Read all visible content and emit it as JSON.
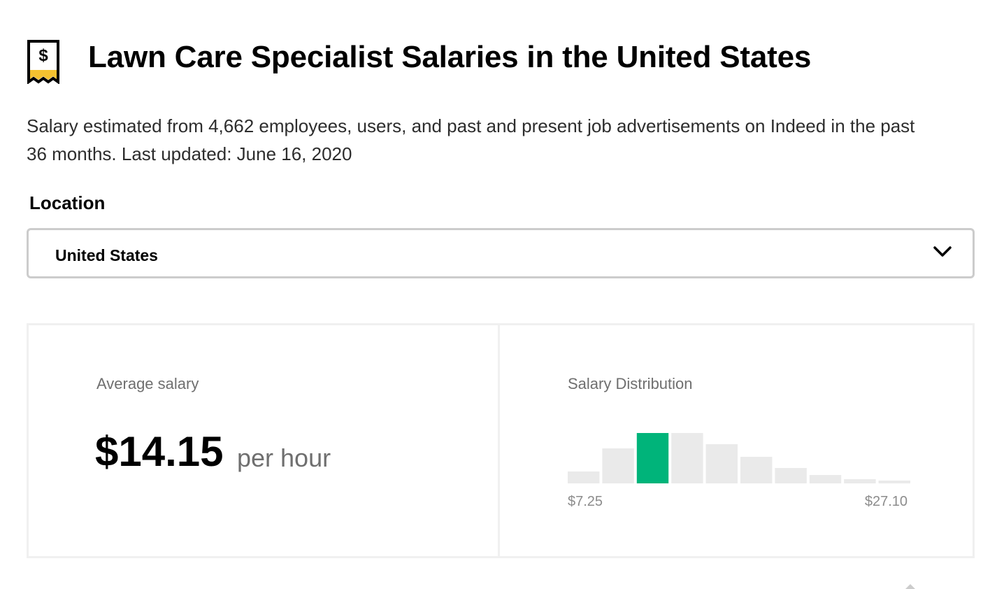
{
  "header": {
    "icon": "salary-receipt-icon",
    "title": "Lawn Care Specialist Salaries in the United States"
  },
  "description": "Salary estimated from 4,662 employees, users, and past and present job advertisements on Indeed in the past 36 months. Last updated: June 16, 2020",
  "location": {
    "label": "Location",
    "selected": "United States",
    "icon": "chevron-down-icon"
  },
  "average_salary": {
    "label": "Average salary",
    "value": "$14.15",
    "unit": "per hour"
  },
  "distribution": {
    "label": "Salary Distribution",
    "min_label": "$7.25",
    "max_label": "$27.10",
    "highlight_color": "#00b47a",
    "bar_color": "#eaeaea"
  },
  "chart_data": {
    "type": "bar",
    "title": "Salary Distribution",
    "categories": [
      "1",
      "2",
      "3",
      "4",
      "5",
      "6",
      "7",
      "8",
      "9",
      "10"
    ],
    "values": [
      17,
      50,
      72,
      72,
      56,
      38,
      22,
      12,
      6,
      4
    ],
    "highlighted_index": 2,
    "x_range_labels": [
      "$7.25",
      "$27.10"
    ],
    "ylim": [
      0,
      72
    ],
    "grid": false
  }
}
